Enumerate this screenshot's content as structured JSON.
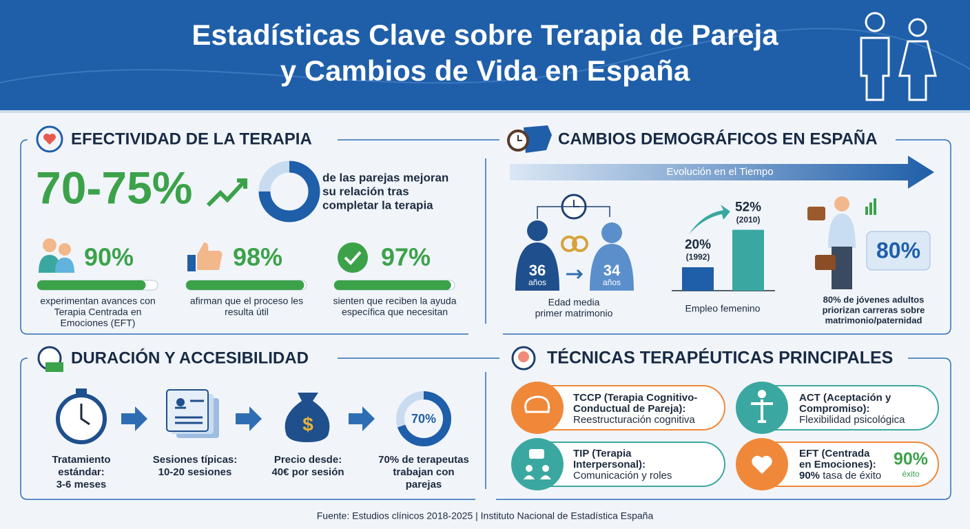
{
  "header": {
    "title_line1": "Estadísticas Clave sobre Terapia de Pareja",
    "title_line2": "y Cambios de Vida en España"
  },
  "effectiveness": {
    "title": "EFECTIVIDAD DE LA TERAPIA",
    "main": {
      "low": 70,
      "high": 75,
      "label": "70-75%"
    },
    "main_text": [
      "de las parejas mejoran",
      "su relación tras",
      "completar la terapia"
    ],
    "stats": [
      {
        "value": 90,
        "label": "90%",
        "text": [
          "experimentan avances con",
          "Terapia Centrada en",
          "Emociones (EFT)"
        ]
      },
      {
        "value": 98,
        "label": "98%",
        "text": [
          "afirman que el proceso les",
          "resulta útil"
        ]
      },
      {
        "value": 97,
        "label": "97%",
        "text": [
          "sienten que reciben la ayuda",
          "específica que necesitan"
        ]
      }
    ]
  },
  "demographics": {
    "title": "CAMBIOS DEMOGRÁFICOS EN ESPAÑA",
    "timeline": "Evolución en el Tiempo",
    "marriage": {
      "male_age": "36",
      "female_age": "34",
      "unit": "años",
      "caption": [
        "Edad media",
        "primer matrimonio"
      ]
    },
    "employment": {
      "bars": [
        {
          "value": 20,
          "label": "20%",
          "year": "(1992)"
        },
        {
          "value": 52,
          "label": "52%",
          "year": "(2010)"
        }
      ],
      "caption": "Empleo femenino"
    },
    "careers": {
      "label": "80%",
      "caption": [
        "80% de jóvenes adultos",
        "priorizan carreras sobre",
        "matrimonio/paternidad"
      ]
    }
  },
  "duration": {
    "title": "DURACIÓN Y ACCESIBILIDAD",
    "steps": [
      {
        "text": [
          "Tratamiento",
          "estándar:",
          "3-6 meses"
        ]
      },
      {
        "text": [
          "Sesiones típicas:",
          "10-20 sesiones"
        ]
      },
      {
        "text": [
          "Precio desde:",
          "40€ por sesión"
        ]
      },
      {
        "value": 70,
        "label": "70%",
        "text": [
          "70% de terapeutas",
          "trabajan con",
          "parejas"
        ]
      }
    ]
  },
  "techniques": {
    "title": "TÉCNICAS TERAPÉUTICAS PRINCIPALES",
    "items": [
      {
        "name": [
          "TCCP (Terapia Cognitivo-",
          "Conductual de Pareja):"
        ],
        "desc": "Reestructuración cognitiva"
      },
      {
        "name": [
          "ACT (Aceptación y",
          "Compromiso):"
        ],
        "desc": "Flexibilidad psicológica"
      },
      {
        "name": [
          "TIP (Terapia",
          "Interpersonal):"
        ],
        "desc": "Comunicación y roles"
      },
      {
        "name": [
          "EFT (Centrada",
          "en Emociones):"
        ],
        "desc_bold": "90%",
        "desc": " tasa de éxito",
        "badge": "90%",
        "badge_sub": "éxito"
      }
    ]
  },
  "footer": "Fuente: Estudios clínicos 2018-2025 | Instituto Nacional de Estadística España"
}
